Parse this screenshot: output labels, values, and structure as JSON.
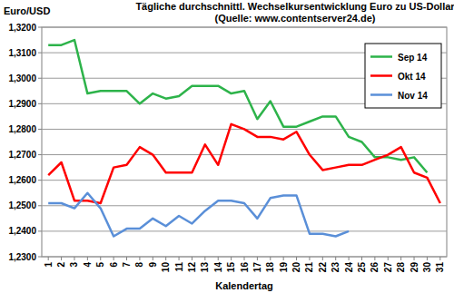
{
  "chart_data": {
    "type": "line",
    "title": "Tägliche durchschnittl. Wechselkursentwicklung Euro zu US-Dollar",
    "subtitle": "(Quelle: www.contentserver24.de)",
    "y_label": "Euro/USD",
    "x_label": "Kalendertag",
    "categories": [
      "1",
      "2",
      "3",
      "4",
      "5",
      "6",
      "7",
      "8",
      "9",
      "10",
      "11",
      "12",
      "13",
      "14",
      "15",
      "16",
      "17",
      "18",
      "19",
      "20",
      "21",
      "22",
      "23",
      "24",
      "25",
      "26",
      "27",
      "28",
      "29",
      "30",
      "31"
    ],
    "series": [
      {
        "name": "Sep 14",
        "color": "#2db34a",
        "values": [
          1.313,
          1.313,
          1.315,
          1.294,
          1.295,
          1.295,
          1.295,
          1.29,
          1.294,
          1.292,
          1.293,
          1.297,
          1.297,
          1.297,
          1.294,
          1.295,
          1.284,
          1.291,
          1.281,
          1.281,
          1.283,
          1.285,
          1.285,
          1.277,
          1.275,
          1.269,
          1.269,
          1.268,
          1.269,
          1.263,
          null
        ]
      },
      {
        "name": "Okt 14",
        "color": "#ff0000",
        "values": [
          1.262,
          1.267,
          1.252,
          1.252,
          1.251,
          1.265,
          1.266,
          1.273,
          1.27,
          1.263,
          1.263,
          1.263,
          1.274,
          1.266,
          1.282,
          1.28,
          1.277,
          1.277,
          1.276,
          1.279,
          1.27,
          1.264,
          1.265,
          1.266,
          1.266,
          1.268,
          1.27,
          1.273,
          1.263,
          1.261,
          1.251
        ]
      },
      {
        "name": "Nov 14",
        "color": "#5a8fd8",
        "values": [
          1.251,
          1.251,
          1.249,
          1.255,
          1.249,
          1.238,
          1.241,
          1.241,
          1.245,
          1.242,
          1.246,
          1.243,
          1.248,
          1.252,
          1.252,
          1.251,
          1.245,
          1.253,
          1.254,
          1.254,
          1.239,
          1.239,
          1.238,
          1.24,
          null,
          null,
          null,
          null,
          null,
          null,
          null
        ]
      }
    ],
    "ylim": [
      1.23,
      1.32
    ],
    "yticks": [
      {
        "value": 1.23,
        "label": "1,2300"
      },
      {
        "value": 1.24,
        "label": "1,2400"
      },
      {
        "value": 1.25,
        "label": "1,2500"
      },
      {
        "value": 1.26,
        "label": "1,2600"
      },
      {
        "value": 1.27,
        "label": "1,2700"
      },
      {
        "value": 1.28,
        "label": "1,2800"
      },
      {
        "value": 1.29,
        "label": "1,2900"
      },
      {
        "value": 1.3,
        "label": "1,3000"
      },
      {
        "value": 1.31,
        "label": "1,3100"
      },
      {
        "value": 1.32,
        "label": "1,3200"
      }
    ],
    "grid": true,
    "legend": "right"
  }
}
